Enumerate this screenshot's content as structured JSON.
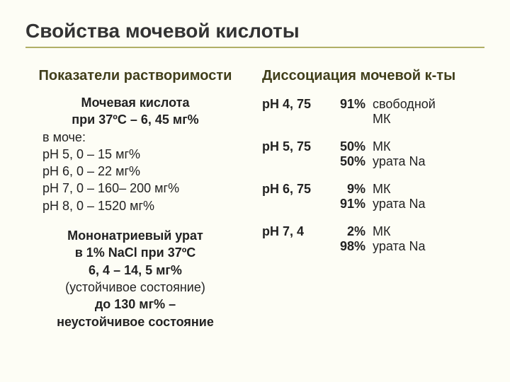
{
  "title": "Свойства мочевой кислоты",
  "left": {
    "subheading": "Показатели растворимости",
    "ua_heading_line1": "Мочевая кислота",
    "ua_heading_line2": "при 37ºС – 6, 45 мг%",
    "urine_label": "в моче:",
    "ph_lines": [
      "рН 5, 0 – 15 мг%",
      "рН 6, 0 – 22 мг%",
      "рН 7, 0 – 160– 200 мг%",
      "рН 8, 0 – 1520 мг%"
    ],
    "mono_line1": "Мононатриевый урат",
    "mono_line2": "в 1% NaCl при 37ºC",
    "mono_line3": "6, 4 – 14, 5 мг%",
    "mono_line4": "(устойчивое состояние)",
    "mono_line5": "до 130 мг% –",
    "mono_line6": "неустойчивое состояние"
  },
  "right": {
    "subheading": "Диссоциация мочевой к-ты",
    "rows": [
      {
        "ph": "рН 4, 75",
        "lines": [
          {
            "num": "91%",
            "txt": "свободной МК"
          }
        ],
        "twoLine": true
      },
      {
        "ph": "рН 5, 75",
        "lines": [
          {
            "num": "50%",
            "txt": "МК"
          },
          {
            "num": "50%",
            "txt": "урата Na"
          }
        ]
      },
      {
        "ph": "рН 6, 75",
        "lines": [
          {
            "num": "9%",
            "txt": "МК"
          },
          {
            "num": "91%",
            "txt": "урата Na"
          }
        ]
      },
      {
        "ph": "рН 7, 4",
        "lines": [
          {
            "num": "2%",
            "txt": "МК"
          },
          {
            "num": "98%",
            "txt": "урата Na"
          }
        ]
      }
    ]
  },
  "colors": {
    "background": "#fdfdf5",
    "rule": "#b0af66",
    "heading": "#403e1a",
    "text": "#222222"
  }
}
